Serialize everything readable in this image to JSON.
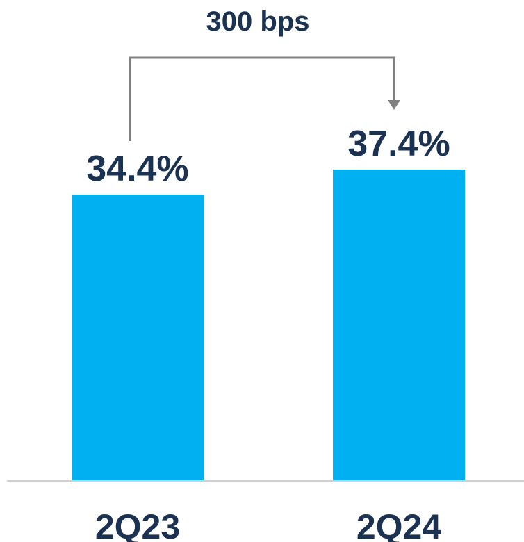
{
  "chart_data": {
    "type": "bar",
    "categories": [
      "2Q23",
      "2Q24"
    ],
    "values": [
      34.4,
      37.4
    ],
    "value_labels": [
      "34.4%",
      "37.4%"
    ],
    "annotation": {
      "text": "300 bps",
      "from": "2Q23",
      "to": "2Q24"
    },
    "ylim": [
      0,
      37.4
    ],
    "grid": false,
    "legend": "none"
  },
  "colors": {
    "bar": "#00b0f0",
    "label": "#1b3252",
    "axis": "#d0d0d0",
    "bracket": "#808080"
  }
}
